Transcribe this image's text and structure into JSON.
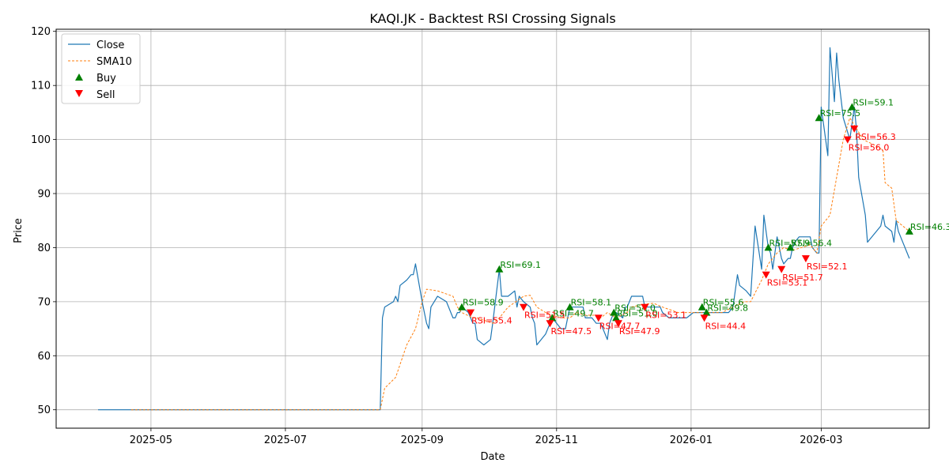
{
  "chart_data": {
    "type": "line",
    "title": "KAQI.JK - Backtest RSI Crossing Signals",
    "xlabel": "Date",
    "ylabel": "Price",
    "xlim": [
      "2025-03-19",
      "2026-04-19"
    ],
    "ylim": [
      46.6,
      120.4
    ],
    "x_ticks": [
      {
        "date": "2025-05-01",
        "label": "2025-05"
      },
      {
        "date": "2025-07-01",
        "label": "2025-07"
      },
      {
        "date": "2025-09-01",
        "label": "2025-09"
      },
      {
        "date": "2025-11-01",
        "label": "2025-11"
      },
      {
        "date": "2026-01-01",
        "label": "2026-01"
      },
      {
        "date": "2026-03-01",
        "label": "2026-03"
      }
    ],
    "y_ticks": [
      50,
      60,
      70,
      80,
      90,
      100,
      110,
      120
    ],
    "grid": true,
    "legend_position": "top-left",
    "colors": {
      "close": "#1f77b4",
      "sma": "#ff7f0e",
      "buy": "#008000",
      "sell": "#ff0000"
    },
    "series": [
      {
        "name": "Close",
        "style": "solid",
        "points": [
          [
            "2025-04-07",
            50
          ],
          [
            "2025-04-22",
            50
          ],
          [
            "2025-05-15",
            50
          ],
          [
            "2025-06-15",
            50
          ],
          [
            "2025-07-15",
            50
          ],
          [
            "2025-08-13",
            50
          ],
          [
            "2025-08-14",
            67
          ],
          [
            "2025-08-15",
            69
          ],
          [
            "2025-08-19",
            70
          ],
          [
            "2025-08-20",
            71
          ],
          [
            "2025-08-21",
            70
          ],
          [
            "2025-08-22",
            73
          ],
          [
            "2025-08-25",
            74
          ],
          [
            "2025-08-26",
            74.5
          ],
          [
            "2025-08-27",
            75
          ],
          [
            "2025-08-28",
            75
          ],
          [
            "2025-08-29",
            77
          ],
          [
            "2025-09-01",
            70
          ],
          [
            "2025-09-02",
            68
          ],
          [
            "2025-09-03",
            66
          ],
          [
            "2025-09-04",
            65
          ],
          [
            "2025-09-05",
            69
          ],
          [
            "2025-09-08",
            71
          ],
          [
            "2025-09-12",
            70
          ],
          [
            "2025-09-15",
            67
          ],
          [
            "2025-09-16",
            67
          ],
          [
            "2025-09-17",
            68
          ],
          [
            "2025-09-18",
            68
          ],
          [
            "2025-09-19",
            69
          ],
          [
            "2025-09-22",
            68
          ],
          [
            "2025-09-23",
            67
          ],
          [
            "2025-09-24",
            66
          ],
          [
            "2025-09-25",
            66
          ],
          [
            "2025-09-26",
            63
          ],
          [
            "2025-09-29",
            62
          ],
          [
            "2025-10-02",
            63
          ],
          [
            "2025-10-03",
            66
          ],
          [
            "2025-10-06",
            76
          ],
          [
            "2025-10-07",
            71
          ],
          [
            "2025-10-08",
            71
          ],
          [
            "2025-10-09",
            71
          ],
          [
            "2025-10-10",
            71
          ],
          [
            "2025-10-13",
            72
          ],
          [
            "2025-10-14",
            69
          ],
          [
            "2025-10-15",
            71
          ],
          [
            "2025-10-17",
            70
          ],
          [
            "2025-10-20",
            69
          ],
          [
            "2025-10-21",
            67
          ],
          [
            "2025-10-22",
            66
          ],
          [
            "2025-10-23",
            62
          ],
          [
            "2025-10-27",
            64
          ],
          [
            "2025-10-29",
            66
          ],
          [
            "2025-10-30",
            67
          ],
          [
            "2025-11-03",
            65
          ],
          [
            "2025-11-04",
            65
          ],
          [
            "2025-11-05",
            65
          ],
          [
            "2025-11-07",
            69
          ],
          [
            "2025-11-10",
            69
          ],
          [
            "2025-11-12",
            69
          ],
          [
            "2025-11-13",
            69
          ],
          [
            "2025-11-14",
            67
          ],
          [
            "2025-11-17",
            67
          ],
          [
            "2025-11-19",
            66
          ],
          [
            "2025-11-21",
            66
          ],
          [
            "2025-11-24",
            63
          ],
          [
            "2025-11-25",
            66
          ],
          [
            "2025-11-26",
            67
          ],
          [
            "2025-11-27",
            68
          ],
          [
            "2025-11-28",
            68
          ],
          [
            "2025-12-01",
            67
          ],
          [
            "2025-12-02",
            69
          ],
          [
            "2025-12-03",
            69
          ],
          [
            "2025-12-05",
            71
          ],
          [
            "2025-12-10",
            71
          ],
          [
            "2025-12-11",
            69
          ],
          [
            "2025-12-12",
            69
          ],
          [
            "2025-12-15",
            69
          ],
          [
            "2025-12-18",
            69
          ],
          [
            "2025-12-19",
            68
          ],
          [
            "2025-12-22",
            67
          ],
          [
            "2025-12-26",
            67
          ],
          [
            "2025-12-30",
            67
          ],
          [
            "2026-01-02",
            68
          ],
          [
            "2026-01-06",
            68
          ],
          [
            "2026-01-09",
            68
          ],
          [
            "2026-01-12",
            68
          ],
          [
            "2026-01-15",
            68
          ],
          [
            "2026-01-18",
            68
          ],
          [
            "2026-01-20",
            69
          ],
          [
            "2026-01-22",
            75
          ],
          [
            "2026-01-23",
            73
          ],
          [
            "2026-01-26",
            72
          ],
          [
            "2026-01-28",
            71
          ],
          [
            "2026-01-30",
            84
          ],
          [
            "2026-02-02",
            76
          ],
          [
            "2026-02-03",
            86
          ],
          [
            "2026-02-05",
            80
          ],
          [
            "2026-02-06",
            79
          ],
          [
            "2026-02-07",
            76
          ],
          [
            "2026-02-09",
            82
          ],
          [
            "2026-02-10",
            80
          ],
          [
            "2026-02-11",
            78
          ],
          [
            "2026-02-12",
            77
          ],
          [
            "2026-02-14",
            78
          ],
          [
            "2026-02-15",
            78
          ],
          [
            "2026-02-16",
            80
          ],
          [
            "2026-02-17",
            81
          ],
          [
            "2026-02-19",
            82
          ],
          [
            "2026-02-22",
            82
          ],
          [
            "2026-02-24",
            82
          ],
          [
            "2026-02-25",
            80
          ],
          [
            "2026-02-27",
            79
          ],
          [
            "2026-02-28",
            79
          ],
          [
            "2026-03-01",
            106
          ],
          [
            "2026-03-04",
            97
          ],
          [
            "2026-03-05",
            117
          ],
          [
            "2026-03-07",
            107
          ],
          [
            "2026-03-08",
            116
          ],
          [
            "2026-03-09",
            111
          ],
          [
            "2026-03-11",
            104
          ],
          [
            "2026-03-14",
            100
          ],
          [
            "2026-03-16",
            106
          ],
          [
            "2026-03-17",
            102
          ],
          [
            "2026-03-18",
            93
          ],
          [
            "2026-03-21",
            86
          ],
          [
            "2026-03-22",
            81
          ],
          [
            "2026-03-28",
            84
          ],
          [
            "2026-03-29",
            86
          ],
          [
            "2026-03-30",
            84
          ],
          [
            "2026-04-02",
            83
          ],
          [
            "2026-04-03",
            81
          ],
          [
            "2026-04-04",
            85
          ],
          [
            "2026-04-05",
            83
          ],
          [
            "2026-04-10",
            78
          ]
        ]
      },
      {
        "name": "SMA10",
        "style": "dashed",
        "points": [
          [
            "2025-04-22",
            50
          ],
          [
            "2025-06-15",
            50
          ],
          [
            "2025-08-13",
            50
          ],
          [
            "2025-08-15",
            54
          ],
          [
            "2025-08-20",
            56
          ],
          [
            "2025-08-25",
            62
          ],
          [
            "2025-08-29",
            65
          ],
          [
            "2025-09-01",
            70
          ],
          [
            "2025-09-03",
            72.3
          ],
          [
            "2025-09-08",
            72
          ],
          [
            "2025-09-15",
            71
          ],
          [
            "2025-09-17",
            69
          ],
          [
            "2025-09-19",
            68
          ],
          [
            "2025-09-24",
            67
          ],
          [
            "2025-09-26",
            67
          ],
          [
            "2025-10-03",
            66
          ],
          [
            "2025-10-06",
            67
          ],
          [
            "2025-10-08",
            68
          ],
          [
            "2025-10-10",
            69
          ],
          [
            "2025-10-17",
            71
          ],
          [
            "2025-10-20",
            71.2
          ],
          [
            "2025-10-23",
            69
          ],
          [
            "2025-10-27",
            68
          ],
          [
            "2025-10-30",
            67.5
          ],
          [
            "2025-11-03",
            67
          ],
          [
            "2025-11-07",
            67
          ],
          [
            "2025-11-10",
            68
          ],
          [
            "2025-11-14",
            67.5
          ],
          [
            "2025-11-19",
            67.5
          ],
          [
            "2025-11-21",
            67
          ],
          [
            "2025-11-24",
            68
          ],
          [
            "2025-11-28",
            67
          ],
          [
            "2025-12-03",
            68
          ],
          [
            "2025-12-05",
            69
          ],
          [
            "2025-12-10",
            69.5
          ],
          [
            "2025-12-15",
            69.7
          ],
          [
            "2025-12-19",
            69
          ],
          [
            "2025-12-26",
            68
          ],
          [
            "2026-01-02",
            68
          ],
          [
            "2026-01-09",
            68
          ],
          [
            "2026-01-15",
            68
          ],
          [
            "2026-01-20",
            69
          ],
          [
            "2026-01-25",
            70
          ],
          [
            "2026-01-28",
            70
          ],
          [
            "2026-02-02",
            74
          ],
          [
            "2026-02-05",
            77
          ],
          [
            "2026-02-09",
            79
          ],
          [
            "2026-02-12",
            80
          ],
          [
            "2026-02-16",
            79.5
          ],
          [
            "2026-02-20",
            80
          ],
          [
            "2026-02-24",
            80.5
          ],
          [
            "2026-02-27",
            79
          ],
          [
            "2026-03-01",
            84
          ],
          [
            "2026-03-05",
            86
          ],
          [
            "2026-03-08",
            93
          ],
          [
            "2026-03-11",
            100
          ],
          [
            "2026-03-14",
            104
          ],
          [
            "2026-03-17",
            102
          ],
          [
            "2026-03-20",
            100
          ],
          [
            "2026-03-25",
            99
          ],
          [
            "2026-03-29",
            98
          ],
          [
            "2026-03-30",
            92
          ],
          [
            "2026-04-02",
            91
          ],
          [
            "2026-04-04",
            85
          ],
          [
            "2026-04-10",
            83
          ]
        ]
      }
    ],
    "legend": [
      "Close",
      "SMA10",
      "Buy",
      "Sell"
    ],
    "buy_signals": [
      {
        "date": "2025-09-19",
        "price": 69,
        "label": "RSI=58.9"
      },
      {
        "date": "2025-10-06",
        "price": 76,
        "label": "RSI=69.1"
      },
      {
        "date": "2025-10-30",
        "price": 67,
        "label": "RSI=49.7"
      },
      {
        "date": "2025-11-07",
        "price": 69,
        "label": "RSI=58.1"
      },
      {
        "date": "2025-11-27",
        "price": 68,
        "label": "RSI=54.0"
      },
      {
        "date": "2025-11-28",
        "price": 67,
        "label": "RSI=51.0"
      },
      {
        "date": "2026-01-06",
        "price": 69,
        "label": "RSI=55.6"
      },
      {
        "date": "2026-01-08",
        "price": 68,
        "label": "RSI=49.8"
      },
      {
        "date": "2026-02-05",
        "price": 80,
        "label": "RSI=57.9"
      },
      {
        "date": "2026-02-15",
        "price": 80,
        "label": "RSI=56.4"
      },
      {
        "date": "2026-02-28",
        "price": 104,
        "label": "RSI=75.5"
      },
      {
        "date": "2026-03-15",
        "price": 106,
        "label": "RSI=59.1"
      },
      {
        "date": "2026-04-10",
        "price": 83,
        "label": "RSI=46.3"
      }
    ],
    "sell_signals": [
      {
        "date": "2025-09-23",
        "price": 68,
        "label": "RSI=55.4"
      },
      {
        "date": "2025-10-17",
        "price": 69,
        "label": "RSI=51.5"
      },
      {
        "date": "2025-10-29",
        "price": 66,
        "label": "RSI=47.5"
      },
      {
        "date": "2025-11-20",
        "price": 67,
        "label": "RSI=47.7"
      },
      {
        "date": "2025-11-29",
        "price": 66,
        "label": "RSI=47.9"
      },
      {
        "date": "2025-12-11",
        "price": 69,
        "label": "RSI=53.1"
      },
      {
        "date": "2026-01-07",
        "price": 67,
        "label": "RSI=44.4"
      },
      {
        "date": "2026-02-04",
        "price": 75,
        "label": "RSI=53.1"
      },
      {
        "date": "2026-02-11",
        "price": 76,
        "label": "RSI=51.7"
      },
      {
        "date": "2026-02-22",
        "price": 78,
        "label": "RSI=52.1"
      },
      {
        "date": "2026-03-13",
        "price": 100,
        "label": "RSI=56.0"
      },
      {
        "date": "2026-03-16",
        "price": 102,
        "label": "RSI=56.3"
      }
    ]
  }
}
